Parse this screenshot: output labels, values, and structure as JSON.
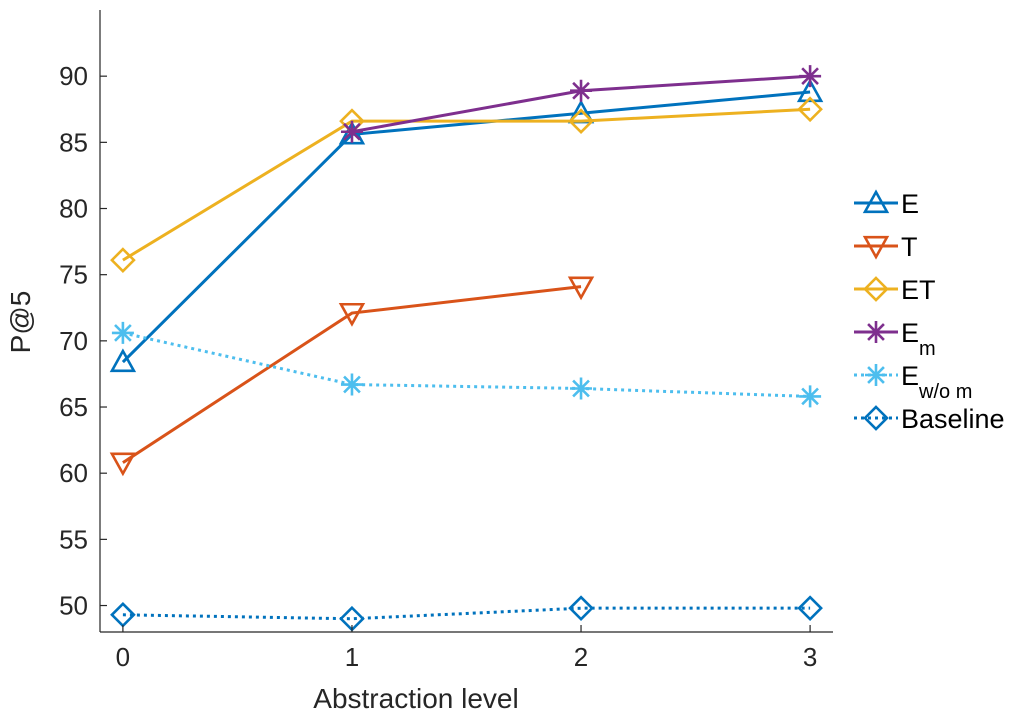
{
  "chart_data": {
    "type": "line",
    "xlabel": "Abstraction level",
    "ylabel": "P@5",
    "x": [
      0,
      1,
      2,
      3
    ],
    "xticks": [
      "0",
      "1",
      "2",
      "3"
    ],
    "yticks": [
      "50",
      "55",
      "60",
      "65",
      "70",
      "75",
      "80",
      "85",
      "90"
    ],
    "xlim": [
      -0.1,
      3.1
    ],
    "ylim": [
      48,
      95
    ],
    "grid": false,
    "legend_position": "right",
    "series": [
      {
        "name": "E",
        "legend_main": "E",
        "legend_sub": "",
        "x": [
          0,
          1,
          2,
          3
        ],
        "values": [
          68.4,
          85.6,
          87.2,
          88.8
        ],
        "color": "#0072BD",
        "marker": "triangle-up",
        "dash": "solid"
      },
      {
        "name": "T",
        "legend_main": "T",
        "legend_sub": "",
        "x": [
          0,
          1,
          2
        ],
        "values": [
          60.8,
          72.1,
          74.1
        ],
        "color": "#D95319",
        "marker": "triangle-down",
        "dash": "solid"
      },
      {
        "name": "ET",
        "legend_main": "ET",
        "legend_sub": "",
        "x": [
          0,
          1,
          2,
          3
        ],
        "values": [
          76.1,
          86.6,
          86.6,
          87.5
        ],
        "color": "#EDB120",
        "marker": "diamond",
        "dash": "solid"
      },
      {
        "name": "Em",
        "legend_main": "E",
        "legend_sub": "m",
        "x": [
          0,
          1,
          2,
          3
        ],
        "values": [
          null,
          85.8,
          88.9,
          90.0
        ],
        "color": "#7E2F8E",
        "marker": "asterisk",
        "dash": "solid"
      },
      {
        "name": "Ew/o m",
        "legend_main": "E",
        "legend_sub": "w/o m",
        "x": [
          0,
          1,
          2,
          3
        ],
        "values": [
          70.6,
          66.7,
          66.4,
          65.8
        ],
        "color": "#4DBEEE",
        "marker": "asterisk",
        "dash": "dotted"
      },
      {
        "name": "Baseline",
        "legend_main": "Baseline",
        "legend_sub": "",
        "x": [
          0,
          1,
          2,
          3
        ],
        "values": [
          49.3,
          49.0,
          49.8,
          49.8
        ],
        "color": "#0072BD",
        "marker": "diamond",
        "dash": "dotted"
      }
    ]
  }
}
